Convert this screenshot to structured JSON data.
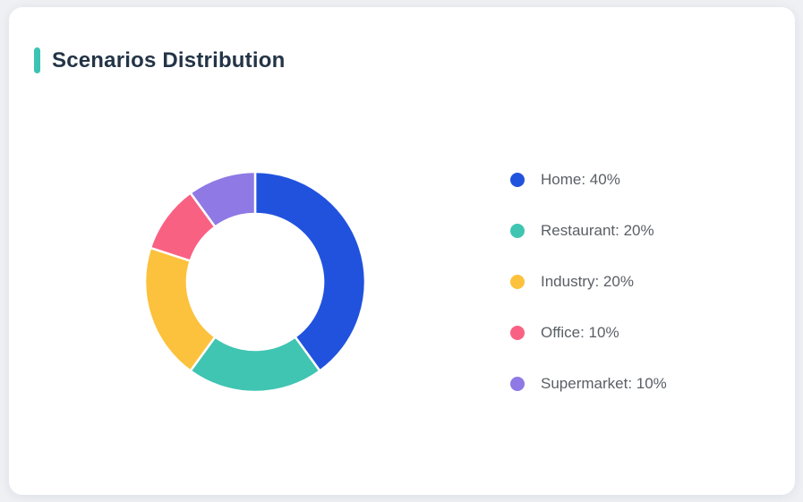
{
  "card": {
    "title": "Scenarios Distribution",
    "accent_color": "#3bc3b4",
    "title_color": "#243447"
  },
  "chart_data": {
    "type": "pie",
    "variant": "donut",
    "title": "Scenarios Distribution",
    "categories": [
      "Home",
      "Restaurant",
      "Industry",
      "Office",
      "Supermarket"
    ],
    "values": [
      40,
      20,
      20,
      10,
      10
    ],
    "unit": "%",
    "colors": [
      "#2152de",
      "#3fc5b1",
      "#fcc23d",
      "#f96183",
      "#8f79e4"
    ],
    "start_angle_deg": 0,
    "direction": "clockwise",
    "inner_radius_ratio": 0.62,
    "segment_gap_color": "#ffffff",
    "legend_position": "right",
    "legend": [
      {
        "label": "Home: 40%",
        "color": "#2152de"
      },
      {
        "label": "Restaurant: 20%",
        "color": "#3fc5b1"
      },
      {
        "label": "Industry: 20%",
        "color": "#fcc23d"
      },
      {
        "label": "Office: 10%",
        "color": "#f96183"
      },
      {
        "label": "Supermarket: 10%",
        "color": "#8f79e4"
      }
    ]
  }
}
